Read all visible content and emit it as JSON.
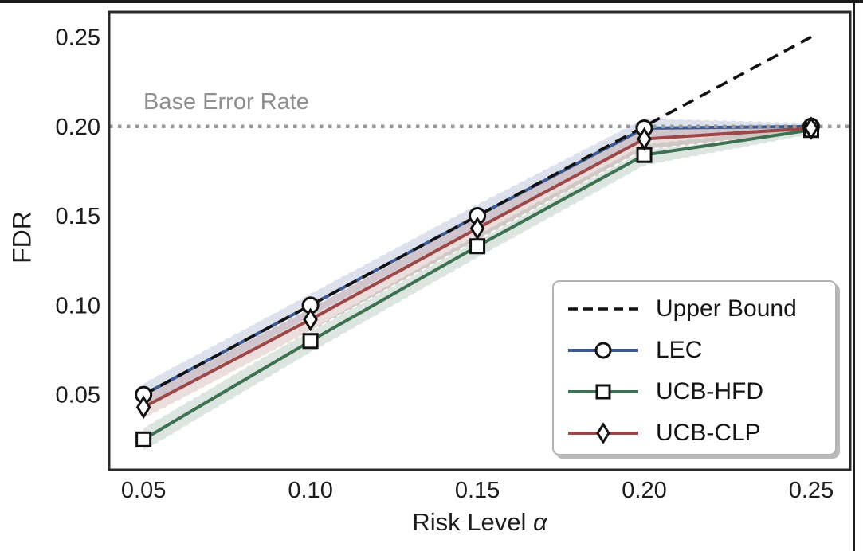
{
  "chart_data": {
    "type": "line",
    "title": "",
    "xlabel": "Risk Level α",
    "xlabel_prefix": "Risk Level",
    "xlabel_symbol": "α",
    "ylabel": "FDR",
    "x": [
      0.05,
      0.1,
      0.15,
      0.2,
      0.25
    ],
    "x_tick_labels": [
      "0.05",
      "0.10",
      "0.15",
      "0.20",
      "0.25"
    ],
    "y_ticks": [
      0.05,
      0.1,
      0.15,
      0.2,
      0.25
    ],
    "y_tick_labels": [
      "0.05",
      "0.10",
      "0.15",
      "0.20",
      "0.25"
    ],
    "xlim": [
      0.0397,
      0.2617
    ],
    "ylim": [
      0.008,
      0.264
    ],
    "grid": false,
    "annotation": {
      "label": "Base Error Rate",
      "y": 0.2,
      "color": "#8f8f8f"
    },
    "reference_lines": {
      "base_error_rate": {
        "label": "Base Error Rate",
        "y": 0.2,
        "style": "dotted",
        "color": "#9a9a9a"
      },
      "upper_bound": {
        "label": "Upper Bound",
        "style": "dashed",
        "color": "#111111",
        "x": [
          0.05,
          0.25
        ],
        "y": [
          0.05,
          0.25
        ]
      }
    },
    "series": [
      {
        "name": "LEC",
        "color": "#3d5a92",
        "marker": "circle",
        "values": [
          0.05,
          0.1,
          0.15,
          0.199,
          0.2
        ],
        "band_halfwidth": [
          0.0065,
          0.0065,
          0.0065,
          0.0055,
          0.002
        ]
      },
      {
        "name": "UCB-HFD",
        "color": "#3e7052",
        "marker": "square",
        "values": [
          0.025,
          0.08,
          0.133,
          0.184,
          0.198
        ],
        "band_halfwidth": [
          0.0065,
          0.0065,
          0.0065,
          0.006,
          0.0025
        ]
      },
      {
        "name": "UCB-CLP",
        "color": "#9c4848",
        "marker": "diamond",
        "values": [
          0.043,
          0.092,
          0.143,
          0.193,
          0.199
        ],
        "band_halfwidth": [
          0.0065,
          0.0065,
          0.0065,
          0.006,
          0.002
        ]
      }
    ],
    "legend": {
      "position": "lower right",
      "items": [
        {
          "label": "Upper Bound",
          "line": "dashed",
          "color": "#111111",
          "marker": null
        },
        {
          "label": "LEC",
          "line": "solid",
          "color": "#3d5a92",
          "marker": "circle"
        },
        {
          "label": "UCB-HFD",
          "line": "solid",
          "color": "#3e7052",
          "marker": "square"
        },
        {
          "label": "UCB-CLP",
          "line": "solid",
          "color": "#9c4848",
          "marker": "diamond"
        }
      ]
    }
  }
}
